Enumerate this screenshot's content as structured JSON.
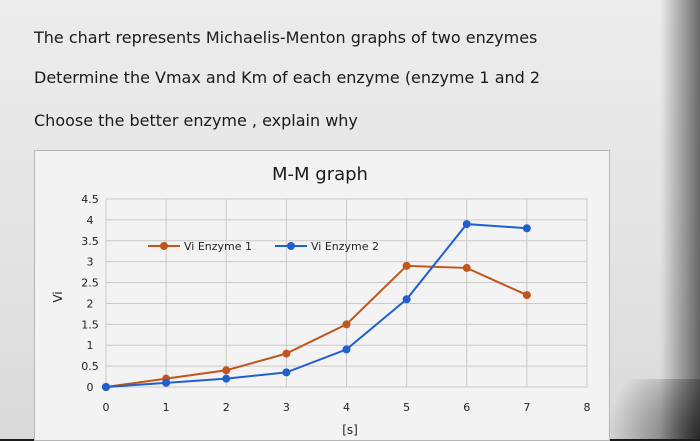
{
  "question": {
    "line1": "The chart represents Michaelis-Menton graphs of two enzymes",
    "line2": "Determine the Vmax and Km of each  enzyme (enzyme 1 and 2",
    "line3": "Choose the better enzyme , explain why"
  },
  "chart_data": {
    "type": "line",
    "title": "M-M graph",
    "xlabel": "[s]",
    "ylabel": "Vi",
    "xlim": [
      0,
      8
    ],
    "ylim": [
      0,
      4.5
    ],
    "xticks": [
      0,
      1,
      2,
      3,
      4,
      5,
      6,
      7,
      8
    ],
    "yticks": [
      0,
      0.5,
      1,
      1.5,
      2,
      2.5,
      3,
      3.5,
      4,
      4.5
    ],
    "grid": true,
    "legend_position": "top",
    "series": [
      {
        "name": "Vi Enzyme 1",
        "color": "#c0561c",
        "points": [
          [
            0,
            0
          ],
          [
            1,
            0.2
          ],
          [
            2,
            0.4
          ],
          [
            3,
            0.8
          ],
          [
            4,
            1.5
          ],
          [
            5,
            2.9
          ],
          [
            6,
            2.85
          ],
          [
            7,
            2.2
          ]
        ]
      },
      {
        "name": "Vi Enzyme 2",
        "color": "#1f5fd0",
        "points": [
          [
            0,
            0
          ],
          [
            1,
            0.1
          ],
          [
            2,
            0.2
          ],
          [
            3,
            0.35
          ],
          [
            4,
            0.9
          ],
          [
            5,
            2.1
          ],
          [
            6,
            3.9
          ],
          [
            7,
            3.8
          ]
        ]
      }
    ]
  }
}
